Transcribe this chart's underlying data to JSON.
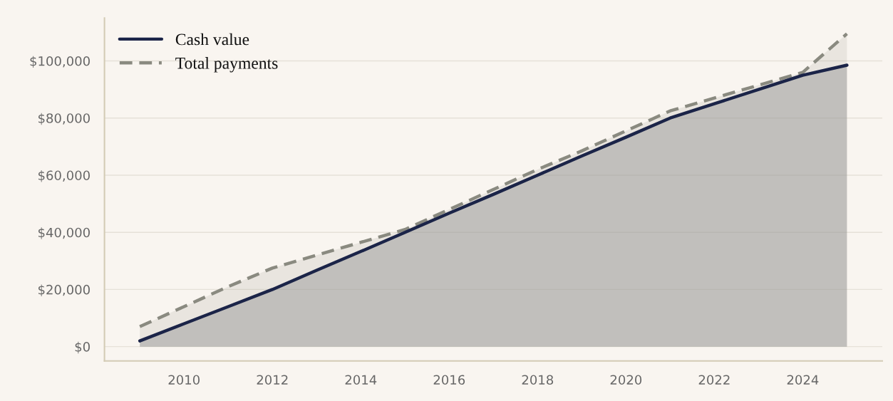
{
  "chart_data": {
    "type": "area",
    "x": [
      2009,
      2010,
      2011,
      2012,
      2013,
      2014,
      2015,
      2016,
      2017,
      2018,
      2019,
      2020,
      2021,
      2022,
      2023,
      2024,
      2025
    ],
    "series": [
      {
        "name": "Total payments",
        "color": "#8a8a80",
        "line_style": "dashed",
        "values": [
          7000,
          14000,
          21000,
          27500,
          32000,
          36500,
          41000,
          48000,
          55000,
          62000,
          68500,
          75500,
          82500,
          87000,
          91500,
          96000,
          109500
        ]
      },
      {
        "name": "Cash value",
        "color": "#1b2448",
        "line_style": "solid",
        "values": [
          2000,
          8000,
          14000,
          20000,
          26700,
          33300,
          40000,
          46700,
          53300,
          60000,
          66700,
          73300,
          80000,
          85000,
          90000,
          95000,
          98500
        ]
      }
    ],
    "xlim": [
      2008.2,
      2025.8
    ],
    "xticks": [
      2010,
      2012,
      2014,
      2016,
      2018,
      2020,
      2022,
      2024
    ],
    "ylim": [
      -5000,
      115000
    ],
    "yticks": [
      {
        "value": 0,
        "label": "$0"
      },
      {
        "value": 20000,
        "label": "$20,000"
      },
      {
        "value": 40000,
        "label": "$40,000"
      },
      {
        "value": 60000,
        "label": "$60,000"
      },
      {
        "value": 80000,
        "label": "$80,000"
      },
      {
        "value": 100000,
        "label": "$100,000"
      }
    ],
    "grid": "y",
    "legend": "top left",
    "marker": "none"
  }
}
